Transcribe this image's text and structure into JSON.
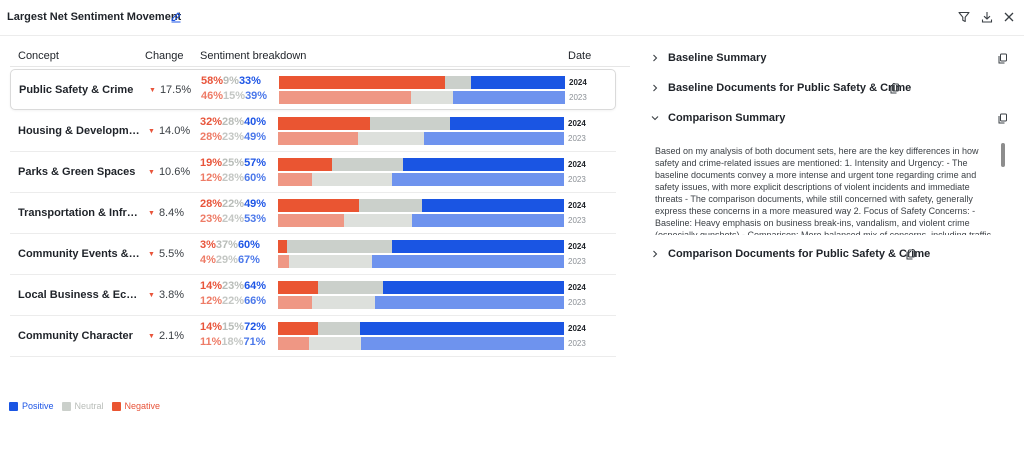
{
  "header": {
    "title": "Largest Net Sentiment Movement",
    "icons": [
      "edit-pencil-icon",
      "filter-icon",
      "download-icon",
      "close-icon"
    ]
  },
  "table": {
    "columns": {
      "concept": "Concept",
      "change": "Change",
      "breakdown": "Sentiment breakdown",
      "date": "Date"
    },
    "rows": [
      {
        "concept": "Public Safety & Crime",
        "change": "17.5%",
        "current": {
          "year": "2024",
          "neg": "58%",
          "neu": "9%",
          "pos": "33%",
          "neg_v": 58,
          "neu_v": 9,
          "pos_v": 33
        },
        "baseline": {
          "year": "2023",
          "neg": "46%",
          "neu": "15%",
          "pos": "39%",
          "neg_v": 46,
          "neu_v": 15,
          "pos_v": 39
        }
      },
      {
        "concept": "Housing & Development",
        "change": "14.0%",
        "current": {
          "year": "2024",
          "neg": "32%",
          "neu": "28%",
          "pos": "40%",
          "neg_v": 32,
          "neu_v": 28,
          "pos_v": 40
        },
        "baseline": {
          "year": "2023",
          "neg": "28%",
          "neu": "23%",
          "pos": "49%",
          "neg_v": 28,
          "neu_v": 23,
          "pos_v": 49
        }
      },
      {
        "concept": "Parks & Green Spaces",
        "change": "10.6%",
        "current": {
          "year": "2024",
          "neg": "19%",
          "neu": "25%",
          "pos": "57%",
          "neg_v": 19,
          "neu_v": 25,
          "pos_v": 57
        },
        "baseline": {
          "year": "2023",
          "neg": "12%",
          "neu": "28%",
          "pos": "60%",
          "neg_v": 12,
          "neu_v": 28,
          "pos_v": 60
        }
      },
      {
        "concept": "Transportation & Infrastructure",
        "change": "8.4%",
        "current": {
          "year": "2024",
          "neg": "28%",
          "neu": "22%",
          "pos": "49%",
          "neg_v": 28,
          "neu_v": 22,
          "pos_v": 49
        },
        "baseline": {
          "year": "2023",
          "neg": "23%",
          "neu": "24%",
          "pos": "53%",
          "neg_v": 23,
          "neu_v": 24,
          "pos_v": 53
        }
      },
      {
        "concept": "Community Events & Activities",
        "change": "5.5%",
        "current": {
          "year": "2024",
          "neg": "3%",
          "neu": "37%",
          "pos": "60%",
          "neg_v": 3,
          "neu_v": 37,
          "pos_v": 60
        },
        "baseline": {
          "year": "2023",
          "neg": "4%",
          "neu": "29%",
          "pos": "67%",
          "neg_v": 4,
          "neu_v": 29,
          "pos_v": 67
        }
      },
      {
        "concept": "Local Business & Economy",
        "change": "3.8%",
        "current": {
          "year": "2024",
          "neg": "14%",
          "neu": "23%",
          "pos": "64%",
          "neg_v": 14,
          "neu_v": 23,
          "pos_v": 64
        },
        "baseline": {
          "year": "2023",
          "neg": "12%",
          "neu": "22%",
          "pos": "66%",
          "neg_v": 12,
          "neu_v": 22,
          "pos_v": 66
        }
      },
      {
        "concept": "Community Character",
        "change": "2.1%",
        "current": {
          "year": "2024",
          "neg": "14%",
          "neu": "15%",
          "pos": "72%",
          "neg_v": 14,
          "neu_v": 15,
          "pos_v": 72
        },
        "baseline": {
          "year": "2023",
          "neg": "11%",
          "neu": "18%",
          "pos": "71%",
          "neg_v": 11,
          "neu_v": 18,
          "pos_v": 71
        }
      }
    ]
  },
  "legend": {
    "positive": "Positive",
    "neutral": "Neutral",
    "negative": "Negative"
  },
  "colors": {
    "negative": "#ea5532",
    "neutral": "#cbd0cb",
    "positive": "#1a55e3",
    "negative_baseline": "#ef9784",
    "neutral_baseline": "#dde0dc",
    "positive_baseline": "#6e93ee"
  },
  "panel": {
    "baseline_summary": "Baseline Summary",
    "baseline_documents": "Baseline Documents for Public Safety & Crime",
    "comparison_summary": "Comparison Summary",
    "comparison_summary_text": "Based on my analysis of both document sets, here are the key differences in how safety and crime-related issues are mentioned: 1. Intensity and Urgency: - The baseline documents convey a more intense and urgent tone regarding crime and safety issues, with more explicit descriptions of violent incidents and immediate threats - The comparison documents, while still concerned with safety, generally express these concerns in a more measured way 2. Focus of Safety Concerns: - Baseline: Heavy emphasis on business break-ins, vandalism, and violent crime (especially gunshots) - Comparison: More balanced mix of concerns, including traffic",
    "comparison_documents": "Comparison Documents for Public Safety & Crime"
  }
}
